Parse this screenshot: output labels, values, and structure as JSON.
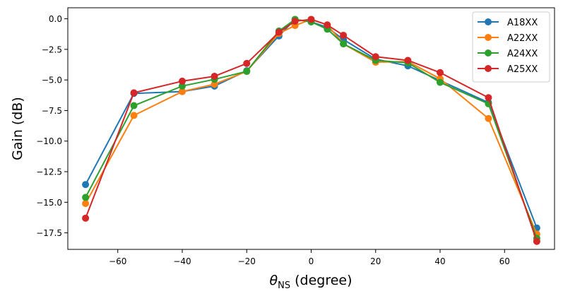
{
  "chart_data": {
    "type": "line",
    "title": "",
    "xlabel": {
      "symbol": "θ",
      "subscript": "NS",
      "unit": " (degree)"
    },
    "ylabel": "Gain (dB)",
    "xlim": [
      -75.5,
      75.5
    ],
    "ylim": [
      -18.85,
      0.9
    ],
    "xticks": [
      -60,
      -40,
      -20,
      0,
      20,
      40,
      60
    ],
    "xtick_labels": [
      "−60",
      "−40",
      "−20",
      "0",
      "20",
      "40",
      "60"
    ],
    "yticks": [
      0.0,
      -2.5,
      -5.0,
      -7.5,
      -10.0,
      -12.5,
      -15.0,
      -17.5
    ],
    "ytick_labels": [
      "0.0",
      "−2.5",
      "−5.0",
      "−7.5",
      "−10.0",
      "−12.5",
      "−15.0",
      "−17.5"
    ],
    "grid": false,
    "legend_position": "top-right",
    "x": [
      -70,
      -55,
      -40,
      -30,
      -20,
      -10,
      -5,
      0,
      5,
      10,
      20,
      30,
      40,
      55,
      70
    ],
    "series": [
      {
        "name": "A18XX",
        "color": "#1f77b4",
        "values": [
          -13.55,
          -6.1,
          -5.95,
          -5.5,
          -4.25,
          -1.4,
          -0.05,
          -0.25,
          -0.7,
          -1.7,
          -3.3,
          -3.85,
          -5.05,
          -6.85,
          -17.1
        ]
      },
      {
        "name": "A22XX",
        "color": "#ff7f0e",
        "values": [
          -15.1,
          -7.9,
          -5.95,
          -5.35,
          -4.3,
          -1.2,
          -0.55,
          -0.05,
          -0.5,
          -2.05,
          -3.55,
          -3.5,
          -4.9,
          -8.15,
          -17.6
        ]
      },
      {
        "name": "A24XX",
        "color": "#2ca02c",
        "values": [
          -14.6,
          -7.1,
          -5.5,
          -4.95,
          -4.3,
          -1.0,
          -0.05,
          -0.25,
          -0.85,
          -2.05,
          -3.4,
          -3.6,
          -5.2,
          -6.95,
          -17.95
        ]
      },
      {
        "name": "A25XX",
        "color": "#d62728",
        "values": [
          -16.3,
          -6.05,
          -5.1,
          -4.7,
          -3.65,
          -1.1,
          -0.2,
          -0.05,
          -0.5,
          -1.35,
          -3.1,
          -3.4,
          -4.4,
          -6.45,
          -18.2
        ]
      }
    ]
  }
}
